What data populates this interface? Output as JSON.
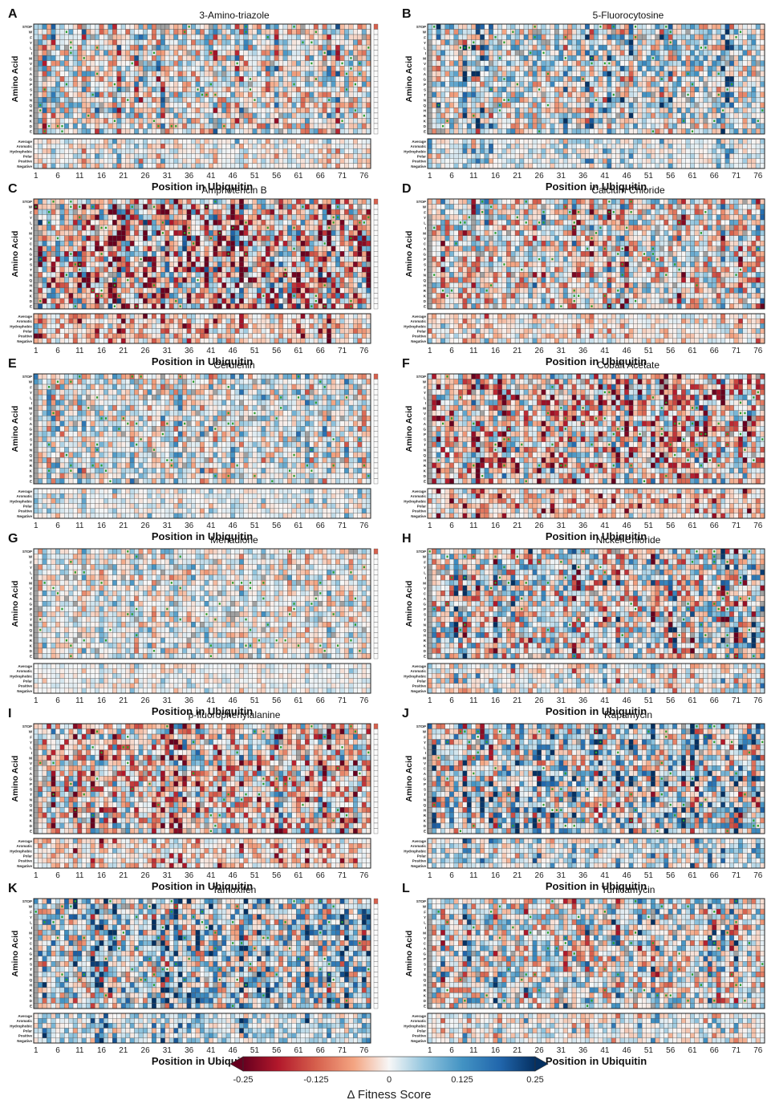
{
  "chart_data": {
    "type": "heatmap",
    "description_units": "Delta Fitness Score",
    "color_scale": {
      "min": -0.25,
      "max": 0.25,
      "ticks": [
        -0.25,
        -0.125,
        0,
        0.125,
        0.25
      ],
      "tick_labels": [
        "-0.25",
        "-0.125",
        "0",
        "0.125",
        "0.25"
      ],
      "label": "Δ Fitness Score",
      "negative_color": "#67001f",
      "mid_color": "#f7f7f7",
      "positive_color": "#053061",
      "missing_color": "#a0a0a0",
      "wildtype_marker_color": "#2ca02c"
    },
    "axes": {
      "xlabel": "Position in Ubiquitin",
      "ylabel": "Amino Acid",
      "x_ticks": [
        "1",
        "6",
        "11",
        "16",
        "21",
        "26",
        "31",
        "36",
        "41",
        "46",
        "51",
        "56",
        "61",
        "66",
        "71",
        "76"
      ],
      "positions": 77,
      "amino_acid_rows": [
        "STOP",
        "W",
        "F",
        "Y",
        "L",
        "I",
        "M",
        "V",
        "C",
        "A",
        "G",
        "P",
        "S",
        "T",
        "N",
        "Q",
        "H",
        "R",
        "K",
        "D",
        "E"
      ],
      "group_rows": [
        "Average",
        "Aromatic",
        "Hydrophobic",
        "Polar",
        "Positive",
        "Negative"
      ]
    },
    "panels": [
      {
        "letter": "A",
        "title": "3-Amino-triazole",
        "intensity": 0.55,
        "bias": 0.0
      },
      {
        "letter": "B",
        "title": "5-Fluorocytosine",
        "intensity": 0.55,
        "bias": 0.25
      },
      {
        "letter": "C",
        "title": "Amphotericin B",
        "intensity": 0.9,
        "bias": -0.55
      },
      {
        "letter": "D",
        "title": "Calcium Chloride",
        "intensity": 0.6,
        "bias": -0.15
      },
      {
        "letter": "E",
        "title": "Cerulenin",
        "intensity": 0.4,
        "bias": 0.1
      },
      {
        "letter": "F",
        "title": "Cobalt Acetate",
        "intensity": 0.75,
        "bias": -0.45
      },
      {
        "letter": "G",
        "title": "Menadione",
        "intensity": 0.3,
        "bias": 0.05
      },
      {
        "letter": "H",
        "title": "Nickel Chloride",
        "intensity": 0.75,
        "bias": 0.0
      },
      {
        "letter": "I",
        "title": "p-fluorophenylalanine",
        "intensity": 0.7,
        "bias": -0.35
      },
      {
        "letter": "J",
        "title": "Rapamycin",
        "intensity": 0.75,
        "bias": 0.3
      },
      {
        "letter": "K",
        "title": "Tamoxifen",
        "intensity": 0.7,
        "bias": 0.45
      },
      {
        "letter": "L",
        "title": "Tunicamycin",
        "intensity": 0.6,
        "bias": 0.1
      }
    ]
  }
}
